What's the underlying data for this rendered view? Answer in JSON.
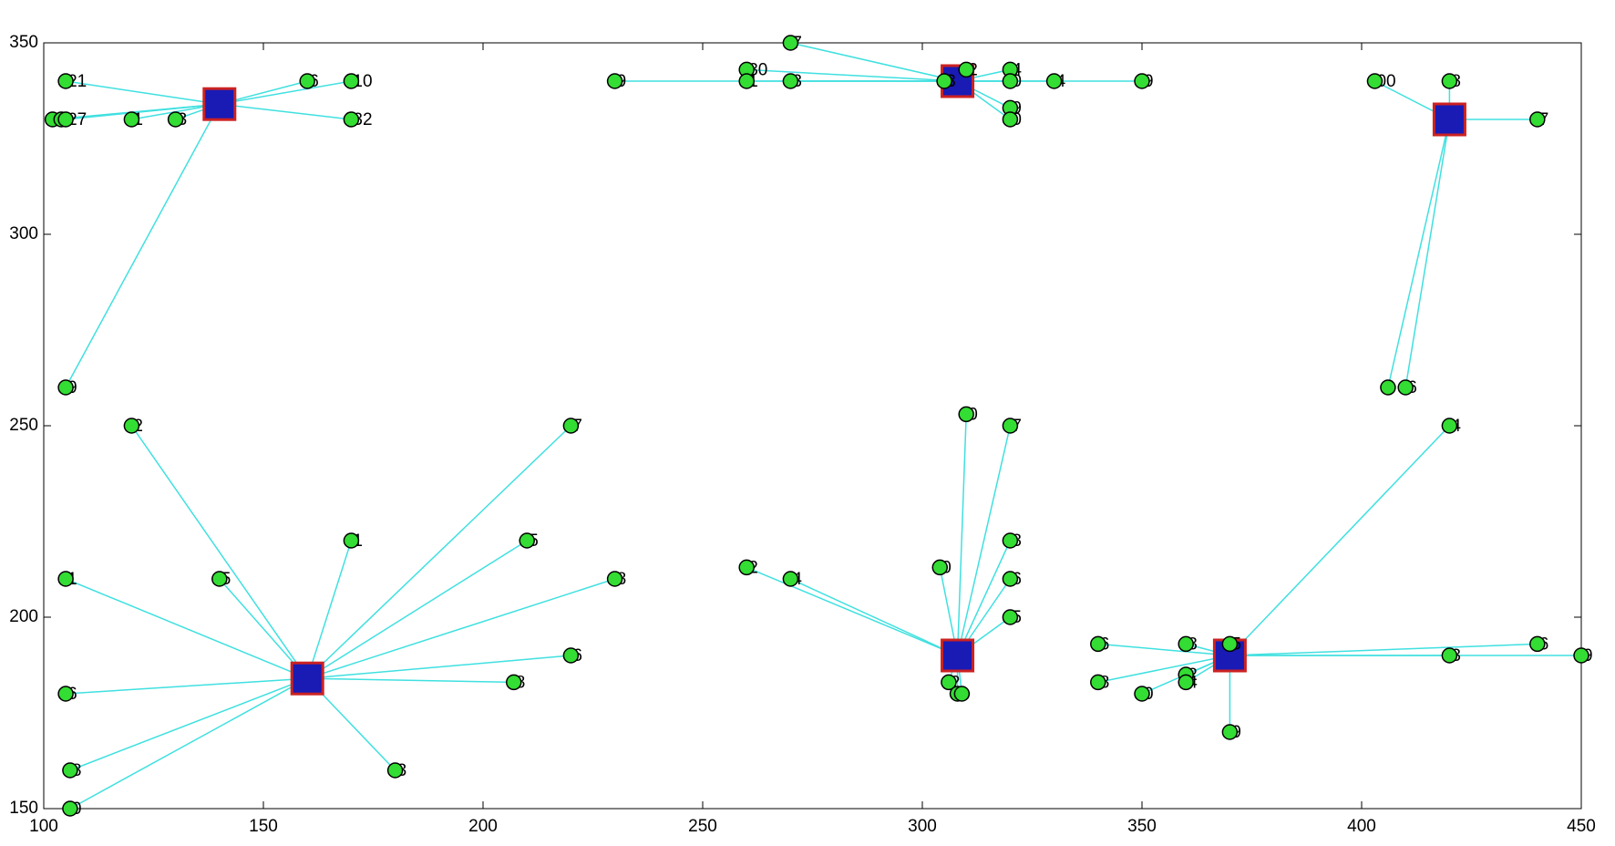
{
  "chart_data": {
    "type": "scatter",
    "xlim": [
      100,
      450
    ],
    "ylim": [
      150,
      350
    ],
    "xticks": [
      100,
      150,
      200,
      250,
      300,
      350,
      400,
      450
    ],
    "yticks": [
      150,
      200,
      250,
      300,
      350
    ],
    "point_color": "#33dd33",
    "center_color": "#1a1ab4",
    "center_edge_color": "#cc2222",
    "link_color": "#40e0e0",
    "clusters": [
      {
        "center": {
          "x": 140,
          "y": 334
        },
        "x": [
          105,
          160,
          170,
          170,
          102,
          104,
          105,
          120,
          130,
          105
        ],
        "y": [
          340,
          340,
          340,
          330,
          330,
          330,
          330,
          330,
          330,
          260
        ],
        "labels": [
          "21",
          "6",
          "10",
          "32",
          "1",
          "2",
          "27",
          "1",
          "3",
          "9"
        ]
      },
      {
        "center": {
          "x": 308,
          "y": 340
        },
        "x": [
          270,
          230,
          260,
          260,
          270,
          310,
          320,
          320,
          330,
          350,
          320,
          320,
          305
        ],
        "y": [
          350,
          340,
          343,
          340,
          340,
          343,
          343,
          340,
          340,
          340,
          333,
          330,
          340
        ],
        "labels": [
          "7",
          "9",
          "30",
          "1",
          "3",
          "2",
          "4",
          "0",
          "4",
          "9",
          "9",
          "0",
          "3"
        ]
      },
      {
        "center": {
          "x": 420,
          "y": 330
        },
        "x": [
          403,
          420,
          440,
          406,
          410
        ],
        "y": [
          340,
          340,
          330,
          260,
          260
        ],
        "labels": [
          "00",
          "8",
          "7",
          null,
          "6"
        ]
      },
      {
        "center": {
          "x": 160,
          "y": 184
        },
        "x": [
          120,
          170,
          210,
          220,
          230,
          140,
          105,
          220,
          207,
          105,
          180,
          106,
          106
        ],
        "y": [
          250,
          220,
          220,
          250,
          210,
          210,
          210,
          190,
          183,
          180,
          160,
          160,
          150
        ],
        "labels": [
          "2",
          "1",
          "5",
          "7",
          "8",
          "5",
          "1",
          "6",
          "8",
          "6",
          "3",
          "8",
          "0"
        ]
      },
      {
        "center": {
          "x": 308,
          "y": 190
        },
        "x": [
          310,
          320,
          320,
          304,
          320,
          320,
          260,
          270,
          306,
          308,
          309
        ],
        "y": [
          253,
          250,
          220,
          213,
          210,
          200,
          213,
          210,
          183,
          180,
          180
        ],
        "labels": [
          "0",
          "7",
          "3",
          "0",
          "6",
          "5",
          "2",
          "4",
          "2",
          "1",
          null
        ]
      },
      {
        "center": {
          "x": 370,
          "y": 190
        },
        "x": [
          420,
          340,
          360,
          370,
          340,
          350,
          360,
          360,
          440,
          420,
          450,
          370
        ],
        "y": [
          250,
          193,
          193,
          193,
          183,
          180,
          185,
          183,
          193,
          190,
          190,
          170
        ],
        "labels": [
          "4",
          "6",
          "3",
          "5",
          "8",
          "0",
          "2",
          "4",
          "6",
          "3",
          "9",
          "9"
        ]
      }
    ]
  }
}
